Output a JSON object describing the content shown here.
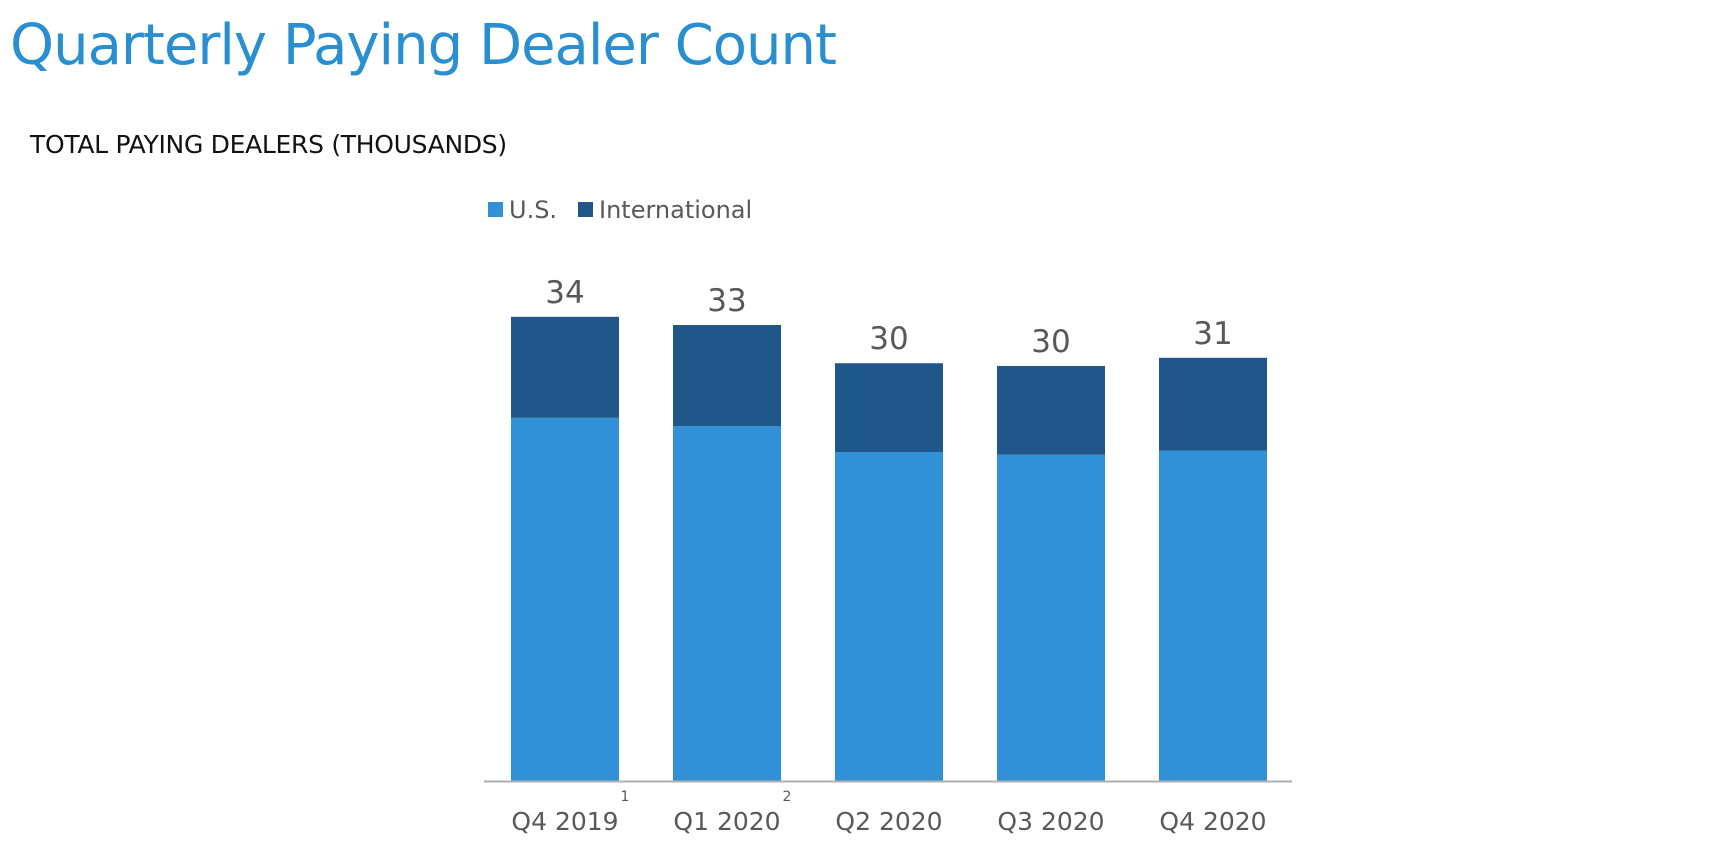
{
  "page": {
    "title": "Quarterly Paying Dealer Count",
    "subtitle": "TOTAL PAYING DEALERS (THOUSANDS)"
  },
  "colors": {
    "title": "#2a8fd0",
    "us": "#3190d6",
    "international": "#20568a",
    "axis": "#b0b0b0",
    "label": "#595959"
  },
  "chart_data": {
    "type": "bar",
    "stacked": true,
    "categories": [
      "Q4 2019",
      "Q1 2020",
      "Q2 2020",
      "Q3 2020",
      "Q4 2020"
    ],
    "footnotes": [
      "1",
      "2",
      "",
      "",
      ""
    ],
    "series": [
      {
        "name": "U.S.",
        "color": "#3190d6",
        "values": [
          26.6,
          26.0,
          24.1,
          23.9,
          24.2
        ]
      },
      {
        "name": "International",
        "color": "#20568a",
        "values": [
          7.4,
          7.4,
          6.5,
          6.5,
          6.8
        ]
      }
    ],
    "totals": [
      "34",
      "33",
      "30",
      "30",
      "31"
    ],
    "legend_position": "top",
    "grid": false,
    "ylim": [
      0,
      34.5
    ],
    "xlabel": "",
    "ylabel": ""
  }
}
